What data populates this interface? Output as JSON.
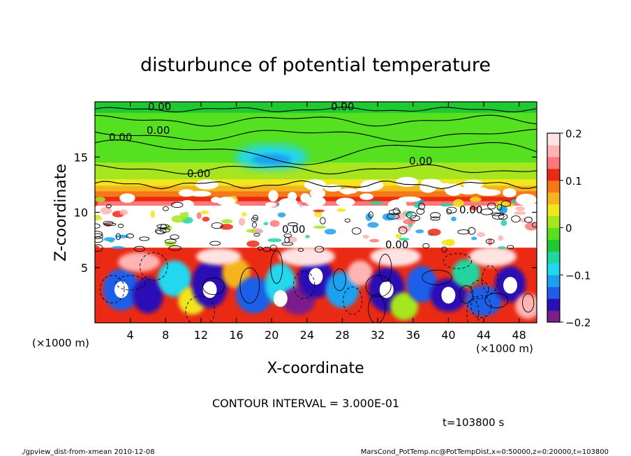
{
  "chart_data": {
    "type": "heatmap",
    "title": "disturbunce of potential temperature",
    "xlabel": "X-coordinate",
    "ylabel": "Z-coordinate",
    "x_unit": "(×1000 m)",
    "y_unit": "(×1000 m)",
    "xlim": [
      0,
      50
    ],
    "ylim": [
      0,
      20
    ],
    "x_ticks": [
      4,
      8,
      12,
      16,
      20,
      24,
      28,
      32,
      36,
      40,
      44,
      48
    ],
    "y_ticks": [
      5,
      10,
      15
    ],
    "colorbar": {
      "range": [
        -0.2,
        0.2
      ],
      "ticks": [
        {
          "value": 0.2,
          "label": "0.2"
        },
        {
          "value": 0.1,
          "label": "0.1"
        },
        {
          "value": 0,
          "label": "0"
        },
        {
          "value": -0.1,
          "label": "−0.1"
        },
        {
          "value": -0.2,
          "label": "−0.2"
        }
      ],
      "colors": [
        "#7a1e8c",
        "#2b10b4",
        "#1f5fe8",
        "#1ea0f0",
        "#22d7ee",
        "#21d4a0",
        "#20c832",
        "#55e020",
        "#a6e61e",
        "#f0e61e",
        "#f5b41e",
        "#f57819",
        "#eb2a14",
        "#ff7878",
        "#ffb4b4",
        "#ffe3e3"
      ]
    },
    "contour_labels": [
      "0.00",
      "0.00",
      "0.00",
      "0.00",
      "0.00",
      "0.00",
      "0.00",
      "0.00",
      "0.00"
    ],
    "contour_interval_text": "CONTOUR INTERVAL = 3.000E-01",
    "time_text": "t=103800 s"
  },
  "footer": {
    "left": "./gpview_dist-from-xmean  2010-12-08",
    "right": "MarsCond_PotTemp.nc@PotTempDist,x=0:50000,z=0:20000,t=103800"
  }
}
